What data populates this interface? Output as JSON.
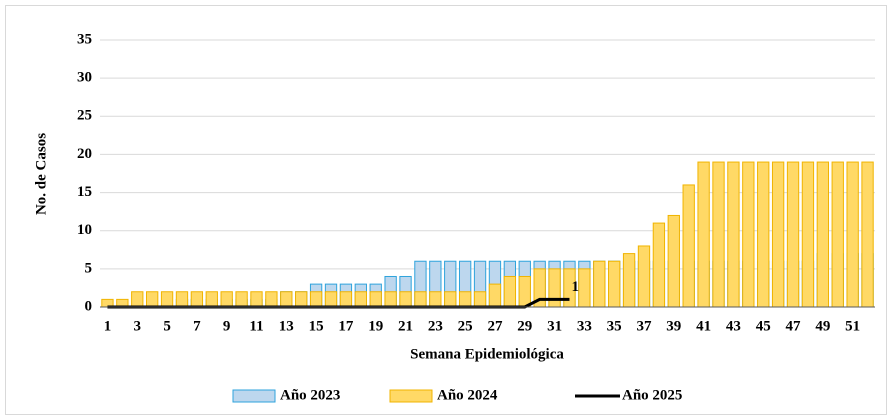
{
  "chart_data": {
    "type": "bar",
    "ylabel": "No. de Casos",
    "xlabel": "Semana Epidemiológica",
    "categories": [
      1,
      null,
      3,
      null,
      5,
      null,
      7,
      null,
      9,
      null,
      11,
      null,
      13,
      null,
      15,
      null,
      17,
      null,
      19,
      null,
      21,
      null,
      23,
      null,
      25,
      null,
      27,
      null,
      29,
      null,
      31,
      null,
      33,
      null,
      35,
      null,
      37,
      null,
      39,
      null,
      41,
      null,
      43,
      null,
      45,
      null,
      47,
      null,
      49,
      null,
      51,
      null
    ],
    "ylim": [
      0,
      35
    ],
    "yticks": [
      0,
      5,
      10,
      15,
      20,
      25,
      30,
      35
    ],
    "grid": true,
    "legend": "bottom",
    "series": [
      {
        "name": "Año 2023",
        "type": "bar",
        "color": "#bdd7ee",
        "edgecolor": "#2ea3dc",
        "values": [
          0,
          0,
          0,
          0,
          0,
          1,
          1,
          1,
          1,
          1,
          1,
          1,
          2,
          2,
          3,
          3,
          3,
          3,
          3,
          4,
          4,
          6,
          6,
          6,
          6,
          6,
          6,
          6,
          6,
          6,
          6,
          6,
          6,
          6,
          6,
          6,
          6,
          6,
          6,
          6,
          6,
          6,
          6,
          6,
          6,
          6,
          6,
          6,
          7,
          7,
          7,
          7
        ]
      },
      {
        "name": "Año 2024",
        "type": "bar",
        "color": "#ffd966",
        "edgecolor": "#f0b400",
        "values": [
          1,
          1,
          2,
          2,
          2,
          2,
          2,
          2,
          2,
          2,
          2,
          2,
          2,
          2,
          2,
          2,
          2,
          2,
          2,
          2,
          2,
          2,
          2,
          2,
          2,
          2,
          3,
          4,
          4,
          5,
          5,
          5,
          5,
          6,
          6,
          7,
          8,
          11,
          12,
          16,
          19,
          19,
          19,
          19,
          19,
          19,
          19,
          19,
          19,
          19,
          19,
          19
        ]
      },
      {
        "name": "Año 2025",
        "type": "line",
        "color": "#000000",
        "values": [
          0,
          0,
          0,
          0,
          0,
          0,
          0,
          0,
          0,
          0,
          0,
          0,
          0,
          0,
          0,
          0,
          0,
          0,
          0,
          0,
          0,
          0,
          0,
          0,
          0,
          0,
          0,
          0,
          0,
          1,
          1,
          1,
          null,
          null,
          null,
          null,
          null,
          null,
          null,
          null,
          null,
          null,
          null,
          null,
          null,
          null,
          null,
          null,
          null,
          null,
          null,
          null
        ]
      }
    ]
  }
}
